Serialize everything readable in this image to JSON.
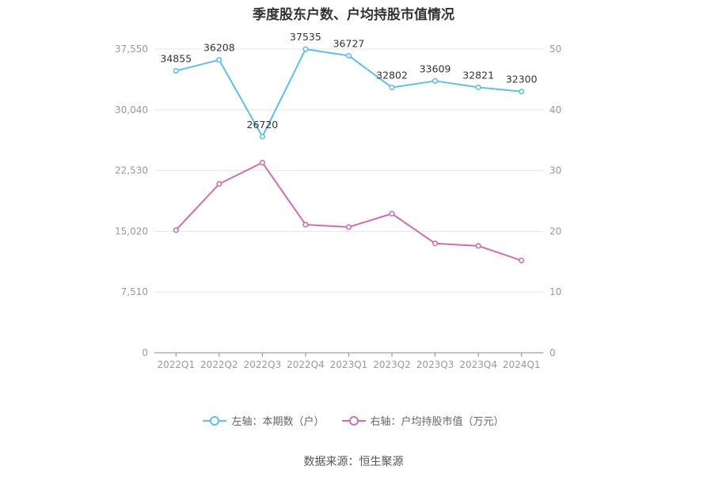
{
  "title": "季度股东户数、户均持股市值情况",
  "source": "数据来源：恒生聚源",
  "chart_data": {
    "type": "line",
    "categories": [
      "2022Q1",
      "2022Q2",
      "2022Q3",
      "2022Q4",
      "2023Q1",
      "2023Q2",
      "2023Q3",
      "2023Q4",
      "2024Q1"
    ],
    "left_axis": {
      "ticks": [
        "0",
        "7,510",
        "15,020",
        "22,530",
        "30,040",
        "37,550"
      ],
      "ylim": [
        0,
        37550
      ]
    },
    "right_axis": {
      "ticks": [
        "0",
        "10",
        "20",
        "30",
        "40",
        "50"
      ],
      "ylim": [
        0,
        50
      ]
    },
    "grid": true,
    "legend_position": "bottom",
    "series": [
      {
        "name": "左轴：本期数（户）",
        "axis": "left",
        "color": "#5bc0f0",
        "values": [
          34855,
          36208,
          26720,
          37535,
          36727,
          32802,
          33609,
          32821,
          32300
        ],
        "labels": [
          "34855",
          "36208",
          "26720",
          "37535",
          "36727",
          "32802",
          "33609",
          "32821",
          "32300"
        ]
      },
      {
        "name": "右轴：户均持股市值（万元）",
        "axis": "right",
        "color": "#d36bb2",
        "values": [
          20.2,
          27.8,
          31.3,
          21.1,
          20.7,
          22.9,
          18.0,
          17.6,
          15.2
        ]
      }
    ]
  }
}
